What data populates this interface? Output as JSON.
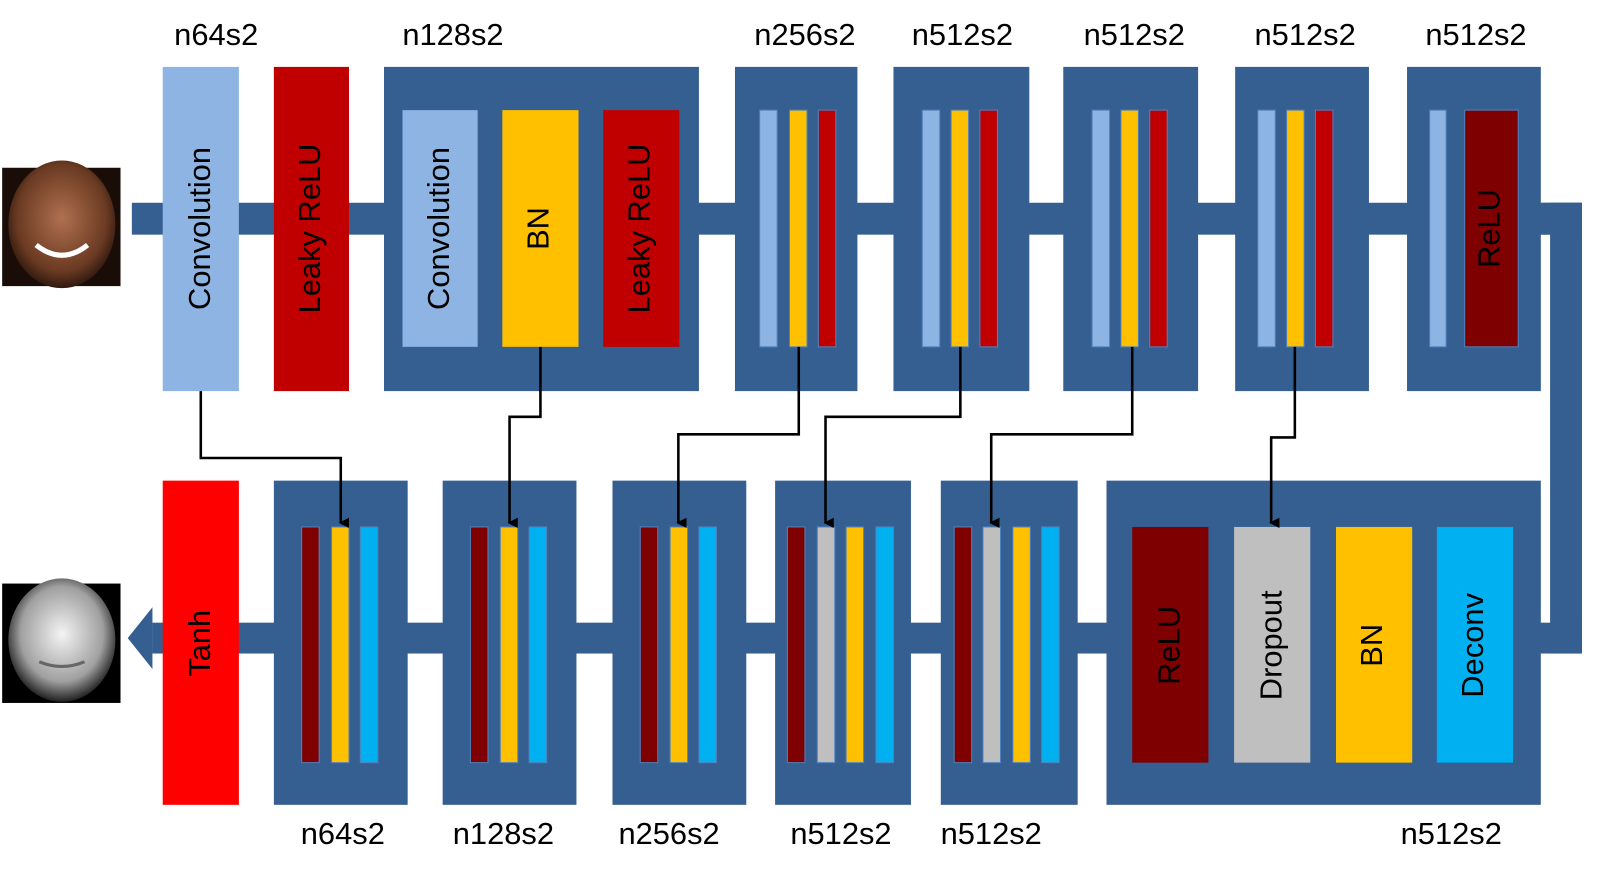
{
  "encoder_labels": [
    "n64s2",
    "n128s2",
    "n256s2",
    "n512s2",
    "n512s2",
    "n512s2",
    "n512s2"
  ],
  "decoder_labels": [
    "n64s2",
    "n128s2",
    "n256s2",
    "n512s2",
    "n512s2",
    "n512s2"
  ],
  "encoder_layers": [
    "Convolution",
    "Leaky ReLU",
    "Convolution",
    "BN",
    "Leaky ReLU",
    "ReLU"
  ],
  "decoder_layers": [
    "Tanh",
    "ReLU",
    "Dropout",
    "BN",
    "Deconv"
  ]
}
